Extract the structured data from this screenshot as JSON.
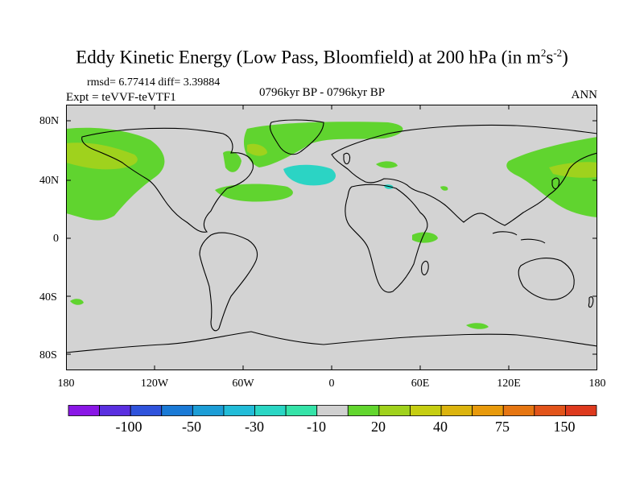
{
  "title": {
    "main": "Eddy Kinetic Energy (Low Pass, Bloomfield) at 200 hPa (in m",
    "sup1": "2",
    "mid": "s",
    "sup2": "-2",
    "end": ")"
  },
  "stats": "rmsd= 6.77414 diff= 3.39884",
  "experiment": "Expt = teVVF-teVTF1",
  "period": "0796kyr BP - 0796kyr BP",
  "season": "ANN",
  "lat_labels": [
    "80N",
    "40N",
    "0",
    "40S",
    "80S"
  ],
  "lon_labels": [
    "180",
    "120W",
    "60W",
    "0",
    "60E",
    "120E",
    "180"
  ],
  "colorbar": {
    "colors": [
      "#8a17e6",
      "#5a2fe0",
      "#2f53dc",
      "#1a7ad6",
      "#1c9dd6",
      "#22bcd8",
      "#2ad6c4",
      "#35e3a8",
      "#d0d0d0",
      "#62d62e",
      "#a0d21c",
      "#c6ce12",
      "#dcb40e",
      "#e89a0c",
      "#e67612",
      "#e2541a",
      "#de3a1e"
    ],
    "labels": [
      "-100",
      "-50",
      "-30",
      "-10",
      "20",
      "40",
      "75",
      "150"
    ]
  }
}
